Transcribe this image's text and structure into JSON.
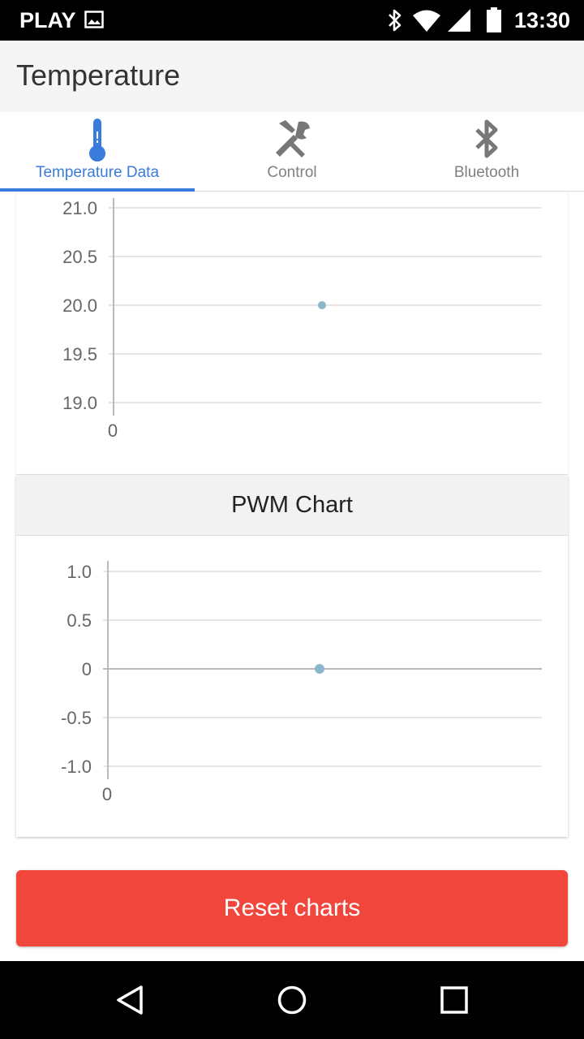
{
  "status_bar": {
    "carrier": "PLAY",
    "time": "13:30",
    "icons": [
      "image-icon",
      "bluetooth-icon",
      "wifi-icon",
      "signal-icon",
      "battery-icon"
    ]
  },
  "app_bar": {
    "title": "Temperature"
  },
  "tabs": [
    {
      "label": "Temperature Data",
      "icon": "thermometer-icon",
      "active": true
    },
    {
      "label": "Control",
      "icon": "tools-icon",
      "active": false
    },
    {
      "label": "Bluetooth",
      "icon": "bluetooth-icon",
      "active": false
    }
  ],
  "colors": {
    "accent": "#3a7bdb",
    "button": "#f0463b",
    "point": "#8fb6cf"
  },
  "temperature_chart": {
    "chart_data": {
      "type": "scatter",
      "title": "",
      "y_ticks": [
        "21.0",
        "20.5",
        "20.0",
        "19.5",
        "19.0"
      ],
      "x_ticks": [
        "0"
      ],
      "ylim": [
        19.0,
        21.0
      ],
      "series": [
        {
          "x": [
            0
          ],
          "y": [
            20.0
          ]
        }
      ],
      "grid": true
    }
  },
  "pwm_chart": {
    "title": "PWM Chart",
    "chart_data": {
      "type": "scatter",
      "title": "PWM Chart",
      "y_ticks": [
        "1.0",
        "0.5",
        "0",
        "-0.5",
        "-1.0"
      ],
      "x_ticks": [
        "0"
      ],
      "ylim": [
        -1.0,
        1.0
      ],
      "series": [
        {
          "x": [
            0
          ],
          "y": [
            0
          ]
        }
      ],
      "grid": true
    }
  },
  "reset_button": {
    "label": "Reset charts"
  },
  "nav_bar": {
    "buttons": [
      "back-icon",
      "home-icon",
      "recents-icon"
    ]
  }
}
